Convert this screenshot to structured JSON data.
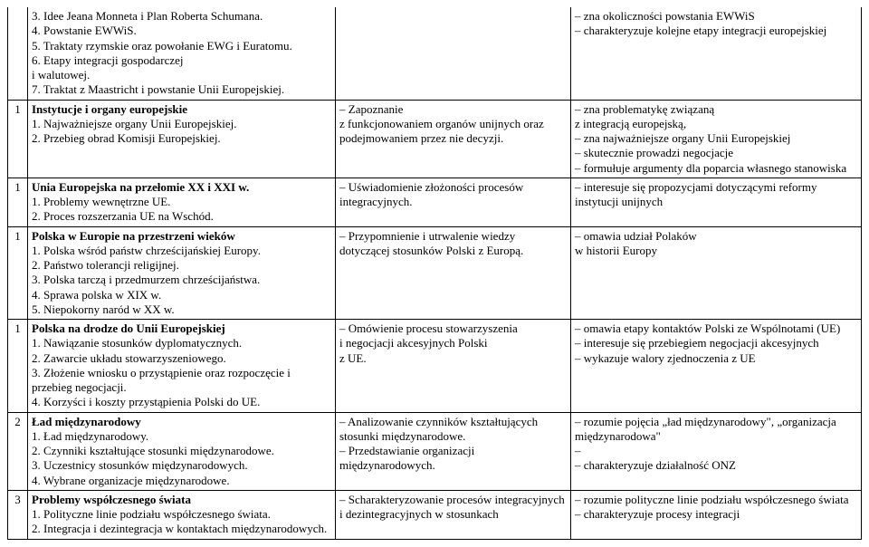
{
  "rows": [
    {
      "num": "",
      "topic": "3. Idee Jeana Monneta i Plan Roberta Schumana.\n4. Powstanie EWWiS.\n5. Traktaty rzymskie oraz powołanie EWG i Euratomu.\n6. Etapy integracji gospodarczej\ni walutowej.\n7. Traktat z Maastricht i powstanie Unii Europejskiej.",
      "mid": "",
      "right": "– zna okoliczności powstania EWWiS\n– charakteryzuje kolejne etapy integracji europejskiej"
    },
    {
      "num": "1",
      "topic_title": "Instytucje i organy europejskie",
      "topic_body": "1. Najważniejsze organy Unii Europejskiej.\n2. Przebieg obrad Komisji Europejskiej.",
      "mid": "– Zapoznanie\nz funkcjonowaniem organów unijnych oraz podejmowaniem przez nie decyzji.",
      "right": "– zna problematykę związaną\nz integracją europejską,\n– zna najważniejsze organy Unii Europejskiej\n– skutecznie prowadzi negocjacje\n– formułuje argumenty dla poparcia własnego stanowiska"
    },
    {
      "num": "1",
      "topic_title": "Unia Europejska na przełomie XX i XXI w.",
      "topic_body": "1. Problemy wewnętrzne UE.\n2. Proces rozszerzania UE na Wschód.",
      "mid": "– Uświadomienie złożoności procesów integracyjnych.",
      "right": "– interesuje się propozycjami dotyczącymi reformy instytucji unijnych"
    },
    {
      "num": "1",
      "topic_title": "Polska w Europie na przestrzeni wieków",
      "topic_body": "1. Polska wśród państw chrześcijańskiej Europy.\n2. Państwo tolerancji religijnej.\n3. Polska tarczą i przedmurzem chrześcijaństwa.\n4. Sprawa polska w XIX w.\n5. Niepokorny naród w XX w.",
      "mid": "– Przypomnienie i utrwalenie wiedzy dotyczącej stosunków Polski z Europą.",
      "right": "– omawia udział Polaków\nw historii Europy"
    },
    {
      "num": "1",
      "topic_title": "Polska na drodze do Unii Europejskiej",
      "topic_body": "1. Nawiązanie stosunków dyplomatycznych.\n2. Zawarcie układu stowarzyszeniowego.\n3. Złożenie wniosku o przystąpienie oraz rozpoczęcie i przebieg negocjacji.\n4. Korzyści i koszty przystąpienia Polski do UE.",
      "mid": "– Omówienie procesu stowarzyszenia\ni negocjacji akcesyjnych Polski\nz UE.",
      "right": "– omawia etapy kontaktów Polski ze Wspólnotami (UE)\n– interesuje się przebiegiem negocjacji akcesyjnych\n– wykazuje walory zjednoczenia z UE"
    },
    {
      "num": "2",
      "topic_title": "Ład międzynarodowy",
      "topic_body": "1. Ład międzynarodowy.\n2. Czynniki kształtujące stosunki międzynarodowe.\n3. Uczestnicy stosunków międzynarodowych.\n4. Wybrane organizacje międzynarodowe.",
      "mid": "– Analizowanie czynników kształtujących stosunki międzynarodowe.\n– Przedstawianie organizacji międzynarodowych.",
      "right": "– rozumie pojęcia „ład międzynarodowy\", „organizacja międzynarodowa\"\n–\n– charakteryzuje działalność ONZ"
    },
    {
      "num": "3",
      "topic_title": "Problemy współczesnego świata",
      "topic_body": "1. Polityczne linie podziału współczesnego świata.\n2. Integracja i dezintegracja w kontaktach międzynarodowych.",
      "mid": "– Scharakteryzowanie procesów integracyjnych\ni dezintegracyjnych w stosunkach",
      "right": "– rozumie polityczne linie podziału współczesnego świata\n– charakteryzuje procesy integracji"
    }
  ]
}
